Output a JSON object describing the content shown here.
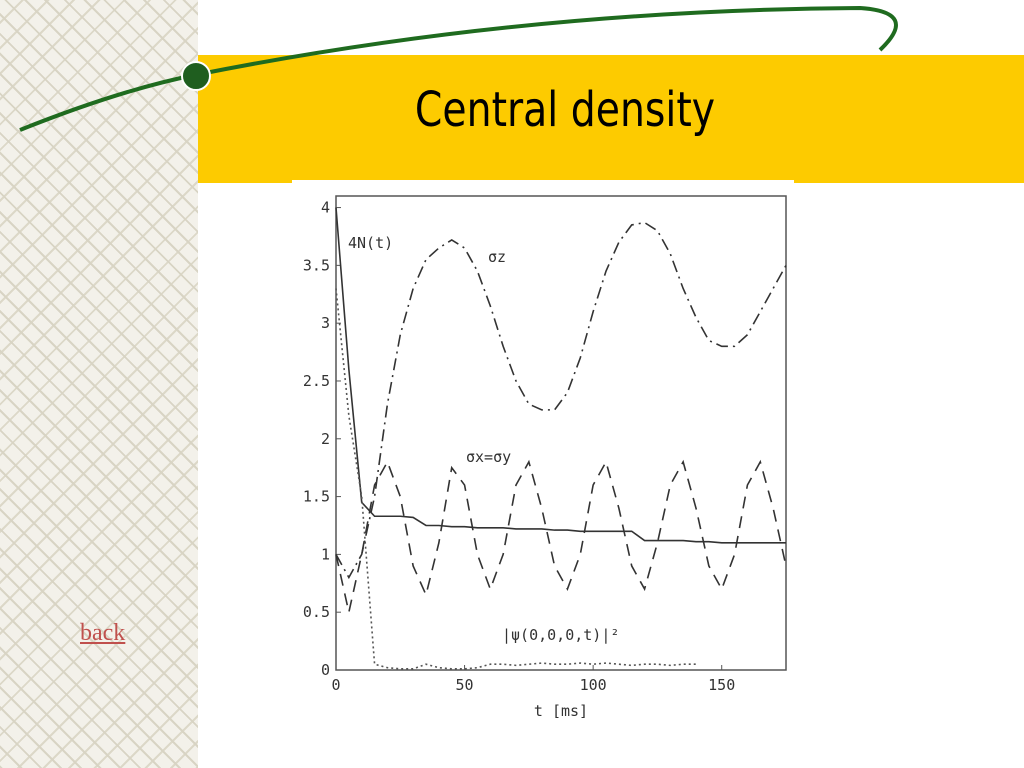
{
  "slide": {
    "title": "Central density",
    "link": "back"
  },
  "chart_data": {
    "type": "line",
    "xlabel": "t  [ms]",
    "x": [
      0,
      5,
      10,
      15,
      20,
      25,
      30,
      35,
      40,
      45,
      50,
      55,
      60,
      65,
      70,
      75,
      80,
      85,
      90,
      95,
      100,
      105,
      110,
      115,
      120,
      125,
      130,
      135,
      140,
      145,
      150,
      155,
      160,
      165,
      170,
      175
    ],
    "xlim": [
      0,
      175
    ],
    "ylim": [
      0,
      4.1
    ],
    "xticks": [
      0,
      50,
      100,
      150
    ],
    "yticks": [
      0,
      0.5,
      1,
      1.5,
      2,
      2.5,
      3,
      3.5,
      4
    ],
    "series": [
      {
        "name": "4N(t)",
        "color": "#333333",
        "style": "solid",
        "values": [
          4,
          2.6,
          1.45,
          1.33,
          1.33,
          1.33,
          1.32,
          1.25,
          1.25,
          1.24,
          1.24,
          1.23,
          1.23,
          1.23,
          1.22,
          1.22,
          1.22,
          1.21,
          1.21,
          1.2,
          1.2,
          1.2,
          1.2,
          1.2,
          1.12,
          1.12,
          1.12,
          1.12,
          1.11,
          1.11,
          1.1,
          1.1,
          1.1,
          1.1,
          1.1,
          1.1
        ]
      },
      {
        "name": "σz",
        "color": "#333333",
        "style": "dashdot",
        "values": [
          1.0,
          0.8,
          1.0,
          1.5,
          2.3,
          2.9,
          3.3,
          3.55,
          3.65,
          3.72,
          3.65,
          3.45,
          3.15,
          2.8,
          2.5,
          2.3,
          2.25,
          2.25,
          2.4,
          2.7,
          3.1,
          3.45,
          3.7,
          3.85,
          3.87,
          3.8,
          3.6,
          3.3,
          3.05,
          2.85,
          2.8,
          2.8,
          2.9,
          3.1,
          3.3,
          3.5
        ]
      },
      {
        "name": "σx=σy",
        "color": "#333333",
        "style": "dashed",
        "values": [
          1.0,
          0.5,
          1.0,
          1.6,
          1.8,
          1.5,
          0.9,
          0.65,
          1.1,
          1.75,
          1.6,
          1.0,
          0.7,
          1.0,
          1.6,
          1.8,
          1.4,
          0.9,
          0.7,
          1.0,
          1.6,
          1.8,
          1.4,
          0.9,
          0.7,
          1.1,
          1.6,
          1.8,
          1.4,
          0.9,
          0.7,
          1.0,
          1.6,
          1.8,
          1.4,
          0.9
        ]
      },
      {
        "name": "|ψ(0,0,0,t)|²",
        "color": "#555555",
        "style": "dotted",
        "values": [
          3.3,
          2.2,
          1.5,
          0.05,
          0.02,
          0.01,
          0.01,
          0.05,
          0.02,
          0.01,
          0.01,
          0.02,
          0.05,
          0.05,
          0.04,
          0.05,
          0.06,
          0.05,
          0.05,
          0.06,
          0.05,
          0.06,
          0.05,
          0.04,
          0.05,
          0.05,
          0.04,
          0.05,
          0.05,
          null,
          null,
          null,
          null,
          null,
          null,
          null
        ]
      }
    ]
  }
}
